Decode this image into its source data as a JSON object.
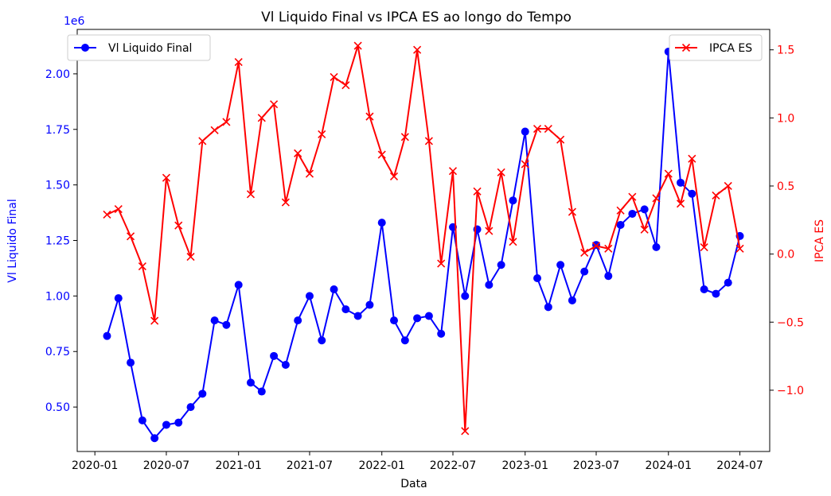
{
  "chart_data": {
    "type": "line",
    "title": "Vl Liquido Final vs IPCA ES ao longo do Tempo",
    "xlabel": "Data",
    "x_ticks": [
      "2020-01",
      "2020-07",
      "2021-01",
      "2021-07",
      "2022-01",
      "2022-07",
      "2023-01",
      "2023-07",
      "2024-01",
      "2024-07"
    ],
    "x": [
      "2020-02",
      "2020-03",
      "2020-04",
      "2020-05",
      "2020-06",
      "2020-07",
      "2020-08",
      "2020-09",
      "2020-10",
      "2020-11",
      "2020-12",
      "2021-01",
      "2021-02",
      "2021-03",
      "2021-04",
      "2021-05",
      "2021-06",
      "2021-07",
      "2021-08",
      "2021-09",
      "2021-10",
      "2021-11",
      "2021-12",
      "2022-01",
      "2022-02",
      "2022-03",
      "2022-04",
      "2022-05",
      "2022-06",
      "2022-07",
      "2022-08",
      "2022-09",
      "2022-10",
      "2022-11",
      "2022-12",
      "2023-01",
      "2023-02",
      "2023-03",
      "2023-04",
      "2023-05",
      "2023-06",
      "2023-07",
      "2023-08",
      "2023-09",
      "2023-10",
      "2023-11",
      "2023-12",
      "2024-01",
      "2024-02",
      "2024-03",
      "2024-04",
      "2024-05",
      "2024-06",
      "2024-07"
    ],
    "left_axis": {
      "label": "Vl Liquido Final",
      "offset_text": "1e6",
      "color": "#0000ff",
      "ylim": [
        0.3,
        2.2
      ],
      "ticks": [
        "0.50",
        "0.75",
        "1.00",
        "1.25",
        "1.50",
        "1.75",
        "2.00"
      ]
    },
    "right_axis": {
      "label": "IPCA ES",
      "color": "#ff0000",
      "ylim": [
        -1.45,
        1.65
      ],
      "ticks": [
        "−1.0",
        "−0.5",
        "0.0",
        "0.5",
        "1.0",
        "1.5"
      ]
    },
    "series": [
      {
        "name": "Vl Liquido Final",
        "axis": "left",
        "color": "#0000ff",
        "marker": "circle",
        "legend_position": "upper left",
        "values": [
          0.82,
          0.99,
          0.7,
          0.44,
          0.36,
          0.42,
          0.43,
          0.5,
          0.56,
          0.89,
          0.87,
          1.05,
          0.61,
          0.57,
          0.73,
          0.69,
          0.89,
          1.0,
          0.8,
          1.03,
          0.94,
          0.91,
          0.96,
          1.33,
          0.89,
          0.8,
          0.9,
          0.91,
          0.83,
          1.31,
          1.0,
          1.3,
          1.05,
          1.14,
          1.43,
          1.74,
          1.08,
          0.95,
          1.14,
          0.98,
          1.11,
          1.23,
          1.09,
          1.32,
          1.37,
          1.39,
          1.22,
          2.1,
          1.51,
          1.46,
          1.03,
          1.01,
          1.06,
          1.27
        ]
      },
      {
        "name": "IPCA ES",
        "axis": "right",
        "color": "#ff0000",
        "marker": "x",
        "legend_position": "upper right",
        "values": [
          0.29,
          0.33,
          0.13,
          -0.09,
          -0.49,
          0.56,
          0.21,
          -0.02,
          0.83,
          0.91,
          0.97,
          1.41,
          0.44,
          1.0,
          1.1,
          0.38,
          0.74,
          0.59,
          0.88,
          1.3,
          1.24,
          1.53,
          1.01,
          0.73,
          0.57,
          0.86,
          1.5,
          0.83,
          -0.07,
          0.61,
          -1.3,
          0.46,
          0.17,
          0.6,
          0.09,
          0.66,
          0.92,
          0.92,
          0.84,
          0.31,
          0.01,
          0.06,
          0.04,
          0.32,
          0.42,
          0.18,
          0.41,
          0.59,
          0.37,
          0.7,
          0.05,
          0.43,
          0.5,
          0.04
        ]
      }
    ],
    "grid": false
  }
}
